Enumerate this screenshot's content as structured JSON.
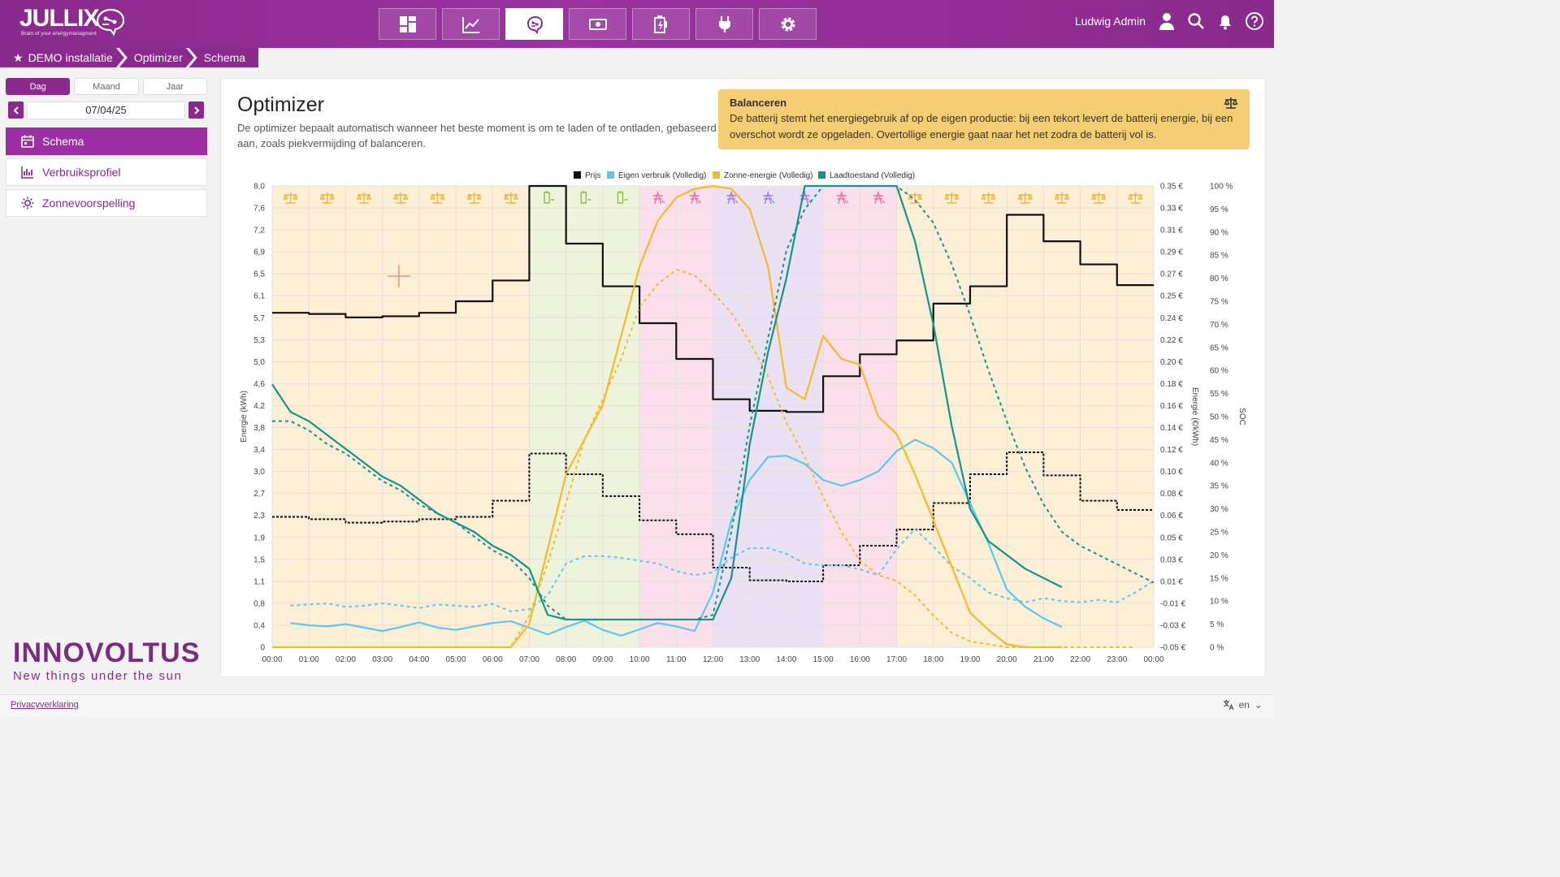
{
  "app": {
    "logo_text": "JULLIX",
    "logo_tagline": "Brain of your energymanagment",
    "user_name": "Ludwig Admin"
  },
  "nav": [
    "dashboard-icon",
    "chart-line-icon",
    "brain-icon",
    "money-icon",
    "battery-charge-icon",
    "plug-icon",
    "gear-icon"
  ],
  "breadcrumb": {
    "installation": "DEMO installatie",
    "section": "Optimizer",
    "page": "Schema"
  },
  "sidebar": {
    "tabs": {
      "day": "Dag",
      "month": "Maand",
      "year": "Jaar"
    },
    "date": "07/04/25",
    "items": [
      {
        "label": "Schema"
      },
      {
        "label": "Verbruiksprofiel"
      },
      {
        "label": "Zonnevoorspelling"
      }
    ],
    "brand_name": "INNOVOLTUS",
    "brand_slogan": "New things under the sun"
  },
  "main": {
    "title": "Optimizer",
    "description": "De optimizer bepaalt automatisch wanneer het beste moment is om te laden of te ontladen, gebaseerd op de energieprijs en het verwachte verbruik en productie. Per tijdsblok wordt een strategie toegepast, zoals piekvermijding of balanceren.",
    "desc_line1": "De optimizer bepaalt automatisch wanneer het beste moment is om te laden of te ontladen, gebaseerd",
    "desc_line2": "aan, zoals piekvermijding of balanceren.",
    "info": {
      "title": "Balanceren",
      "text": "De batterij stemt het energiegebruik af op de eigen productie: bij een tekort levert de batterij energie, bij een overschot wordt ze opgeladen. Overtollige energie gaat naar het net zodra de batterij vol is."
    }
  },
  "footer": {
    "privacy": "Privacyverklaring",
    "lang": "en"
  },
  "colors": {
    "brand": "#8a2a8c",
    "price": "#111111",
    "consumption": "#5bc8f0",
    "solar": "#f7b928",
    "soc": "#13958a",
    "balance_bg": "#fcefd6",
    "charge_bg": "#eef4dc",
    "pink_bg": "#fbe0ec",
    "purple_bg": "#ebe1f5"
  },
  "chart_data": {
    "type": "line",
    "legend": [
      "Prijs",
      "Eigen verbruik (Volledig)",
      "Zonne-energie (Volledig)",
      "Laadtoestand (Volledig)"
    ],
    "ylabel_left": "Energie (kWh)",
    "ylabel_right": "Energie (€/kWh)",
    "ylabel_soc": "SOC",
    "x_ticks": [
      "00:00",
      "01:00",
      "02:00",
      "03:00",
      "04:00",
      "05:00",
      "06:00",
      "07:00",
      "08:00",
      "09:00",
      "10:00",
      "11:00",
      "12:00",
      "13:00",
      "14:00",
      "15:00",
      "16:00",
      "17:00",
      "18:00",
      "19:00",
      "20:00",
      "21:00",
      "22:00",
      "23:00",
      "00:00"
    ],
    "left_ticks": [
      "0",
      "0,4",
      "0,8",
      "1,1",
      "1,5",
      "1,9",
      "2,3",
      "2,7",
      "3,0",
      "3,4",
      "3,8",
      "4,2",
      "4,6",
      "5,0",
      "5,3",
      "5,7",
      "6,1",
      "6,5",
      "6,9",
      "7,2",
      "7,6",
      "8,0"
    ],
    "price_ticks": [
      "-0.05 €",
      "-0.03 €",
      "-0.01 €",
      "0.01 €",
      "0.03 €",
      "0.05 €",
      "0.06 €",
      "0.08 €",
      "0.10 €",
      "0.12 €",
      "0.14 €",
      "0.16 €",
      "0.18 €",
      "0.20 €",
      "0.22 €",
      "0.24 €",
      "0.25 €",
      "0.27 €",
      "0.29 €",
      "0.31 €",
      "0.33 €",
      "0.35 €"
    ],
    "soc_ticks": [
      "0 %",
      "5 %",
      "10 %",
      "15 %",
      "20 %",
      "25 %",
      "30 %",
      "35 %",
      "40 %",
      "45 %",
      "50 %",
      "55 %",
      "60 %",
      "65 %",
      "70 %",
      "75 %",
      "80 %",
      "85 %",
      "90 %",
      "95 %",
      "100 %"
    ],
    "ylim_left": [
      0,
      8.0
    ],
    "ylim_price": [
      -0.05,
      0.35
    ],
    "ylim_soc": [
      0,
      100
    ],
    "strategy_blocks": [
      {
        "from": 0,
        "to": 7,
        "mode": "balance"
      },
      {
        "from": 7,
        "to": 10,
        "mode": "charge"
      },
      {
        "from": 10,
        "to": 12,
        "mode": "pink"
      },
      {
        "from": 12,
        "to": 15,
        "mode": "purple"
      },
      {
        "from": 15,
        "to": 17,
        "mode": "pink"
      },
      {
        "from": 17,
        "to": 24,
        "mode": "balance"
      }
    ],
    "series": [
      {
        "name": "Prijs",
        "role": "actual",
        "step": true,
        "x": [
          0,
          1,
          2,
          3,
          4,
          5,
          6,
          7,
          8,
          9,
          10,
          11,
          12,
          13,
          14,
          15,
          16,
          17,
          18,
          19,
          20,
          21,
          22,
          23,
          24
        ],
        "y": [
          0.24,
          0.239,
          0.236,
          0.237,
          0.24,
          0.25,
          0.268,
          0.35,
          0.3,
          0.263,
          0.231,
          0.2,
          0.165,
          0.155,
          0.154,
          0.185,
          0.204,
          0.216,
          0.248,
          0.263,
          0.325,
          0.302,
          0.282,
          0.264,
          0.264
        ]
      },
      {
        "name": "Prijs",
        "role": "forecast",
        "step": true,
        "x": [
          0,
          1,
          2,
          3,
          4,
          5,
          6,
          7,
          8,
          9,
          10,
          11,
          12,
          13,
          14,
          15,
          16,
          17,
          18,
          19,
          20,
          21,
          22,
          23,
          24
        ],
        "y": [
          0.063,
          0.061,
          0.058,
          0.059,
          0.061,
          0.063,
          0.077,
          0.118,
          0.1,
          0.081,
          0.06,
          0.048,
          0.019,
          0.008,
          0.007,
          0.021,
          0.038,
          0.052,
          0.075,
          0.1,
          0.119,
          0.099,
          0.077,
          0.069,
          0.069
        ]
      },
      {
        "name": "Eigen verbruik (Volledig)",
        "role": "actual",
        "x": [
          0.5,
          1,
          1.5,
          2,
          2.5,
          3,
          3.5,
          4,
          4.5,
          5,
          5.5,
          6,
          6.5,
          7,
          7.5,
          8,
          8.5,
          9,
          9.5,
          10,
          10.5,
          11,
          11.5,
          12,
          12.5,
          13,
          13.5,
          14,
          14.5,
          15,
          15.5,
          16,
          16.5,
          17,
          17.5,
          18,
          18.5,
          19,
          19.5,
          20,
          20.5,
          21,
          21.5
        ],
        "y": [
          0.42,
          0.38,
          0.36,
          0.4,
          0.34,
          0.28,
          0.35,
          0.43,
          0.34,
          0.3,
          0.36,
          0.42,
          0.45,
          0.34,
          0.22,
          0.35,
          0.46,
          0.3,
          0.2,
          0.31,
          0.42,
          0.36,
          0.28,
          0.95,
          2.2,
          2.9,
          3.3,
          3.32,
          3.18,
          2.9,
          2.8,
          2.9,
          3.05,
          3.4,
          3.6,
          3.45,
          3.2,
          2.5,
          1.8,
          1.0,
          0.7,
          0.5,
          0.35
        ]
      },
      {
        "name": "Eigen verbruik (Volledig)",
        "role": "forecast",
        "x": [
          0.5,
          1,
          1.5,
          2,
          2.5,
          3,
          3.5,
          4,
          4.5,
          5,
          5.5,
          6,
          6.5,
          7,
          7.5,
          8,
          8.5,
          9,
          9.5,
          10,
          10.5,
          11,
          11.5,
          12,
          12.5,
          13,
          13.5,
          14,
          14.5,
          15,
          15.5,
          16,
          16.5,
          17,
          17.5,
          18,
          18.5,
          19,
          19.5,
          20,
          20.5,
          21,
          21.5,
          22,
          22.5,
          23,
          23.5,
          24
        ],
        "y": [
          0.72,
          0.74,
          0.76,
          0.7,
          0.72,
          0.76,
          0.72,
          0.68,
          0.74,
          0.72,
          0.7,
          0.75,
          0.62,
          0.66,
          0.9,
          1.45,
          1.58,
          1.58,
          1.55,
          1.5,
          1.45,
          1.32,
          1.25,
          1.3,
          1.55,
          1.72,
          1.72,
          1.62,
          1.45,
          1.42,
          1.42,
          1.35,
          1.25,
          1.7,
          2.05,
          1.75,
          1.4,
          1.2,
          0.95,
          0.85,
          0.78,
          0.85,
          0.8,
          0.78,
          0.82,
          0.78,
          0.95,
          1.15
        ]
      },
      {
        "name": "Zonne-energie (Volledig)",
        "role": "actual",
        "x": [
          0,
          6,
          6.5,
          7,
          7.5,
          8,
          8.5,
          9,
          9.5,
          10,
          10.5,
          11,
          11.5,
          12,
          12.5,
          13,
          13.5,
          14,
          14.5,
          15,
          15.5,
          16,
          16.5,
          17,
          17.5,
          18,
          18.5,
          19,
          19.5,
          20,
          20.5,
          21,
          21.5
        ],
        "y": [
          0,
          0,
          0,
          0.4,
          1.7,
          3.0,
          3.6,
          4.2,
          5.4,
          6.6,
          7.4,
          7.8,
          7.95,
          8.0,
          7.95,
          7.6,
          6.6,
          4.5,
          4.3,
          5.4,
          5.0,
          4.9,
          4.0,
          3.7,
          3.0,
          2.2,
          1.4,
          0.6,
          0.3,
          0.05,
          0,
          0,
          0
        ]
      },
      {
        "name": "Zonne-energie (Volledig)",
        "role": "forecast",
        "x": [
          0,
          6,
          6.5,
          7,
          7.5,
          8,
          8.5,
          9,
          9.5,
          10,
          10.5,
          11,
          11.5,
          12,
          12.5,
          13,
          13.5,
          14,
          14.5,
          15,
          15.5,
          16,
          16.5,
          17,
          17.5,
          18,
          18.5,
          19,
          19.5,
          20,
          20.5,
          21,
          21.5,
          22,
          22.5,
          23,
          23.5
        ],
        "y": [
          0,
          0,
          0,
          0.55,
          1.45,
          2.5,
          3.6,
          4.3,
          5.0,
          5.9,
          6.3,
          6.55,
          6.45,
          6.15,
          5.8,
          5.3,
          4.7,
          3.9,
          3.3,
          2.6,
          2.0,
          1.5,
          1.25,
          1.15,
          0.9,
          0.55,
          0.25,
          0.1,
          0.05,
          0,
          0,
          0,
          0,
          0,
          0,
          0,
          0
        ]
      },
      {
        "name": "Laadtoestand (Volledig)",
        "role": "actual",
        "axis": "soc",
        "x": [
          0,
          0.5,
          1,
          1.5,
          2,
          2.5,
          3,
          3.5,
          4,
          4.5,
          5,
          5.5,
          6,
          6.5,
          7,
          7.5,
          8,
          8.5,
          9,
          9.5,
          10,
          10.5,
          11,
          11.5,
          12,
          12.5,
          13,
          13.5,
          14,
          14.5,
          15,
          15.5,
          16,
          16.5,
          17,
          17.5,
          18,
          18.5,
          19,
          19.5,
          20,
          20.5,
          21,
          21.5
        ],
        "y": [
          57,
          51,
          49,
          46,
          43,
          40,
          37,
          35,
          32,
          29,
          27,
          25,
          22,
          20,
          17,
          7,
          6,
          6,
          6,
          6,
          6,
          6,
          6,
          6,
          6,
          15,
          44,
          64,
          80,
          100,
          100,
          100,
          100,
          100,
          100,
          88,
          70,
          48,
          30,
          23,
          20,
          17,
          15,
          13
        ]
      },
      {
        "name": "Laadtoestand (Volledig)",
        "role": "forecast",
        "axis": "soc",
        "x": [
          0,
          0.5,
          1,
          1.5,
          2,
          2.5,
          3,
          3.5,
          4,
          4.5,
          5,
          5.5,
          6,
          6.5,
          7,
          7.5,
          8,
          8.5,
          9,
          9.5,
          10,
          10.5,
          11,
          11.5,
          12,
          12.5,
          13,
          13.5,
          14,
          14.5,
          15,
          15.5,
          16,
          16.5,
          17,
          17.5,
          18,
          18.5,
          19,
          19.5,
          20,
          20.5,
          21,
          21.5,
          22,
          22.5,
          23,
          23.5,
          24
        ],
        "y": [
          49,
          49,
          47,
          44,
          42,
          39,
          36,
          34,
          31,
          29,
          27,
          24,
          21,
          19,
          15,
          9,
          6,
          6,
          6,
          6,
          6,
          6,
          6,
          6,
          7,
          25,
          48,
          67,
          86,
          95,
          100,
          100,
          100,
          100,
          100,
          97,
          92,
          83,
          72,
          60,
          49,
          39,
          31,
          25,
          22,
          20,
          18,
          16,
          14
        ]
      }
    ]
  }
}
